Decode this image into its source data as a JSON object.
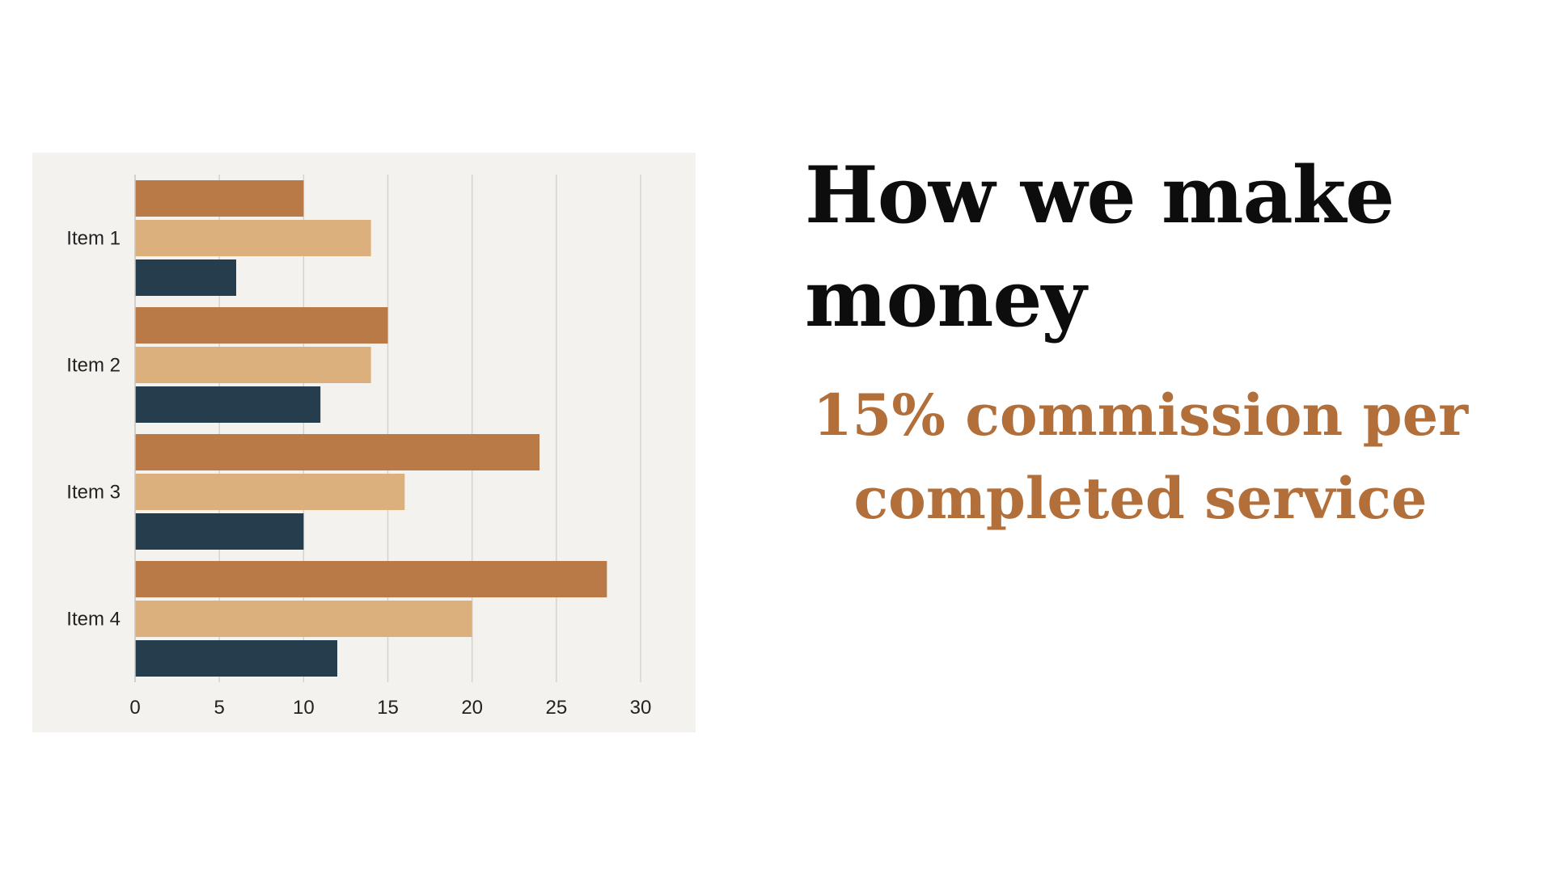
{
  "headline": "How we make money",
  "subline": "15% commission per completed service",
  "colors": {
    "panel_background": "#f4f2ee",
    "headline_text": "#0d0d0d",
    "subline_text": "#b36f3a",
    "gridline": "#d6d3cd",
    "axis_line": "#c8c5bf"
  },
  "chart_data": {
    "type": "bar",
    "orientation": "horizontal",
    "categories": [
      "Item 1",
      "Item 2",
      "Item 3",
      "Item 4"
    ],
    "series": [
      {
        "color": "#b97a48",
        "values": [
          10,
          15,
          24,
          28
        ]
      },
      {
        "color": "#dcb07d",
        "values": [
          14,
          14,
          16,
          20
        ]
      },
      {
        "color": "#253d4d",
        "values": [
          6,
          11,
          10,
          12
        ]
      }
    ],
    "x_ticks": [
      "0",
      "5",
      "10",
      "15",
      "20",
      "25",
      "30"
    ],
    "xlim": [
      0,
      30
    ],
    "grid": true,
    "legend": "none",
    "title": "",
    "xlabel": "",
    "ylabel": ""
  }
}
